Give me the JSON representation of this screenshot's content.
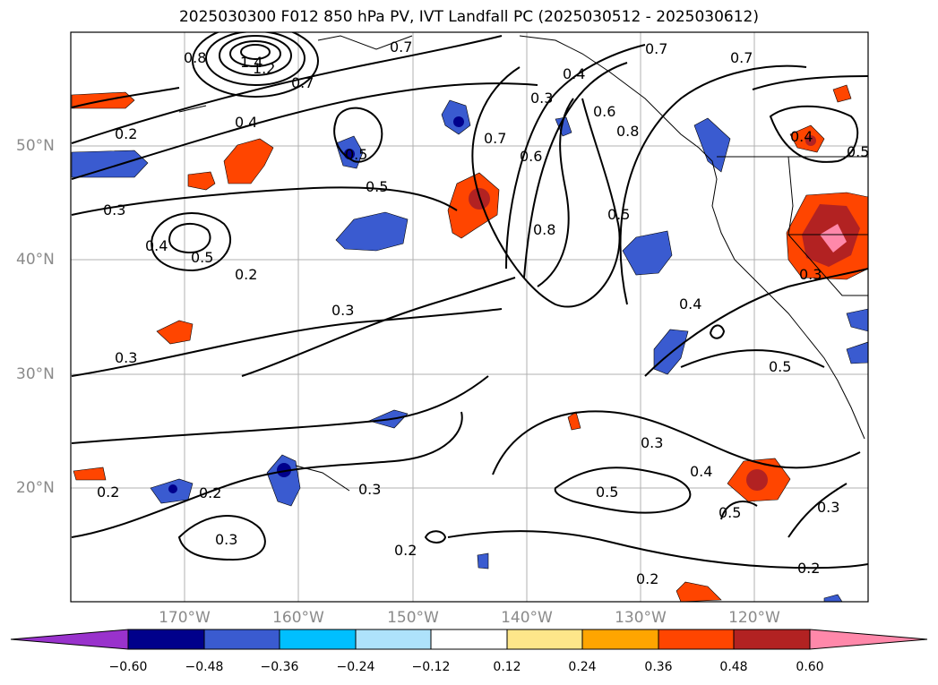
{
  "title": "2025030300 F012 850 hPa PV, IVT Landfall PC (2025030512 - 2025030612)",
  "axes": {
    "lat_ticks": [
      "50°N",
      "40°N",
      "30°N",
      "20°N"
    ],
    "lon_ticks": [
      "170°W",
      "160°W",
      "150°W",
      "140°W",
      "130°W",
      "120°W"
    ]
  },
  "colorbar": {
    "tick_labels": [
      "−0.60",
      "−0.48",
      "−0.36",
      "−0.24",
      "−0.12",
      "0.12",
      "0.24",
      "0.36",
      "0.48",
      "0.60"
    ],
    "colors": [
      "#9932cc",
      "#00008b",
      "#3a5bd0",
      "#00bfff",
      "#aee2fb",
      "#ffffff",
      "#fde68a",
      "#ffa500",
      "#ff4500",
      "#b22222",
      "#ff88aa"
    ]
  },
  "contour_labels": [
    "1.4",
    "1.2",
    "0.8",
    "0.7",
    "0.7",
    "0.7",
    "0.7",
    "0.4",
    "0.2",
    "0.5",
    "0.5",
    "0.3",
    "0.4",
    "0.5",
    "0.2",
    "0.3",
    "0.3",
    "0.7",
    "0.6",
    "0.3",
    "0.4",
    "0.6",
    "0.8",
    "0.5",
    "0.8",
    "0.5",
    "0.4",
    "0.3",
    "0.4",
    "0.5",
    "0.3",
    "0.4",
    "0.5",
    "0.5",
    "0.3",
    "0.2",
    "0.2",
    "0.3",
    "0.3",
    "0.2",
    "0.2",
    "0.2"
  ]
}
